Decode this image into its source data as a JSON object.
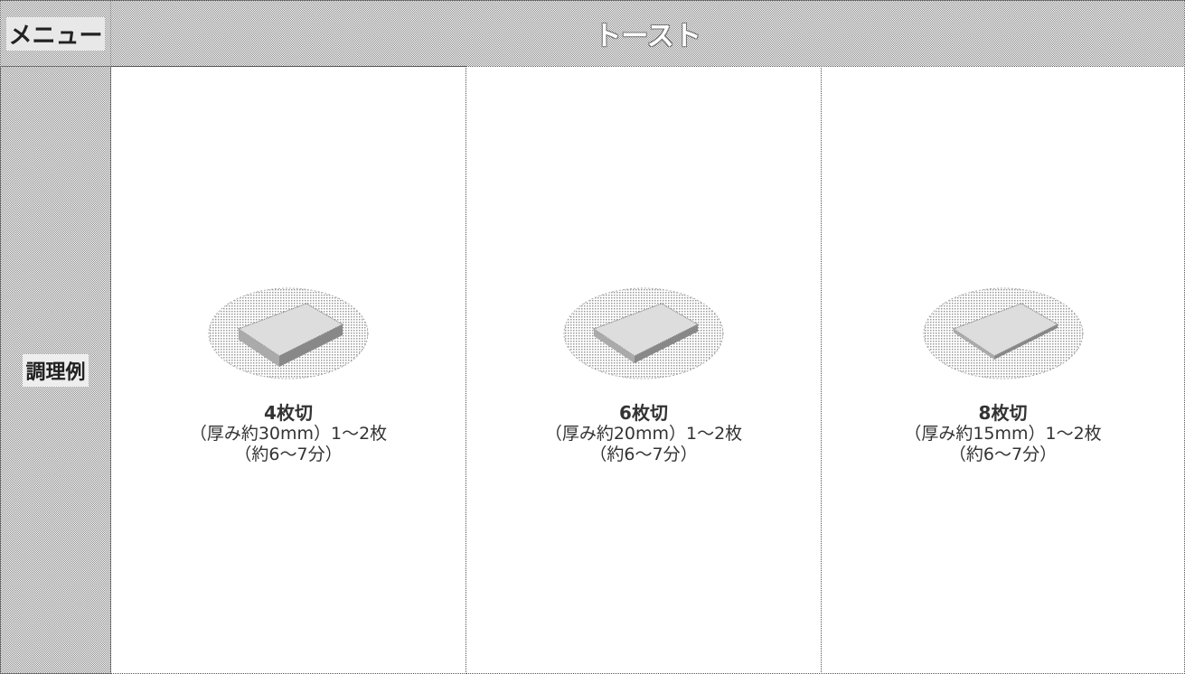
{
  "table": {
    "header": {
      "menu_label": "メニュー",
      "title": "トースト"
    },
    "row_label": "調理例",
    "cells": [
      {
        "name": "4枚切",
        "detail": "（厚み約30mm）1～2枚",
        "time": "（約6～7分）"
      },
      {
        "name": "6枚切",
        "detail": "（厚み約20mm）1～2枚",
        "time": "（約6～7分）"
      },
      {
        "name": "8枚切",
        "detail": "（厚み約15mm）1～2枚",
        "time": "（約6～7分）"
      }
    ]
  }
}
